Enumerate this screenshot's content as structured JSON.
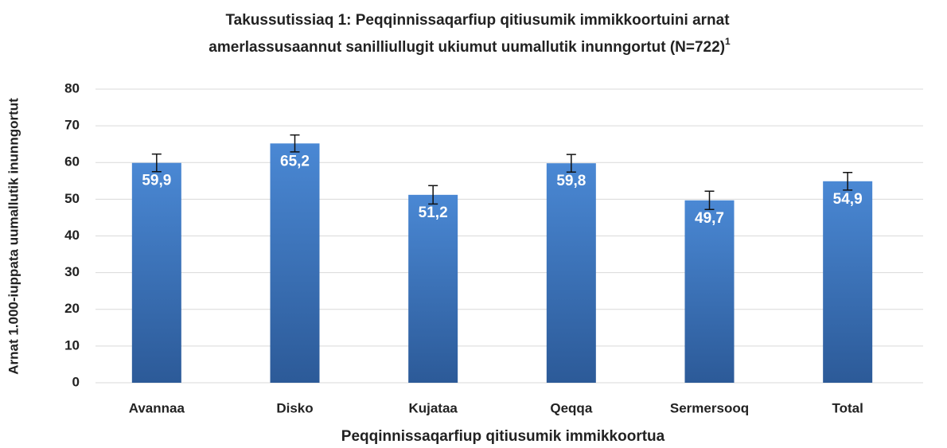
{
  "chart_data": {
    "type": "bar",
    "title": [
      "Takussutissiaq 1: Peqqinnissaqarfiup qitiusumik immikkoortuini arnat",
      "amerlassusaannut sanilliullugit ukiumut uumallutik inunngortut (N=722)"
    ],
    "title_superscript": "1",
    "xlabel": "Peqqinnissaqarfiup qitiusumik immikkoortua",
    "ylabel": "Arnat 1.000-iuppata uumallutik inunngortut",
    "categories": [
      "Avannaa",
      "Disko",
      "Kujataa",
      "Qeqqa",
      "Sermersooq",
      "Total"
    ],
    "values": [
      59.9,
      65.2,
      51.2,
      59.8,
      49.7,
      54.9
    ],
    "value_labels": [
      "59,9",
      "65,2",
      "51,2",
      "59,8",
      "49,7",
      "54,9"
    ],
    "errors": [
      2.4,
      2.3,
      2.5,
      2.4,
      2.5,
      2.4
    ],
    "color": "#3a74c0",
    "ylim": [
      0,
      80
    ],
    "yticks": [
      0,
      10,
      20,
      30,
      40,
      50,
      60,
      70,
      80
    ],
    "grid": true
  }
}
